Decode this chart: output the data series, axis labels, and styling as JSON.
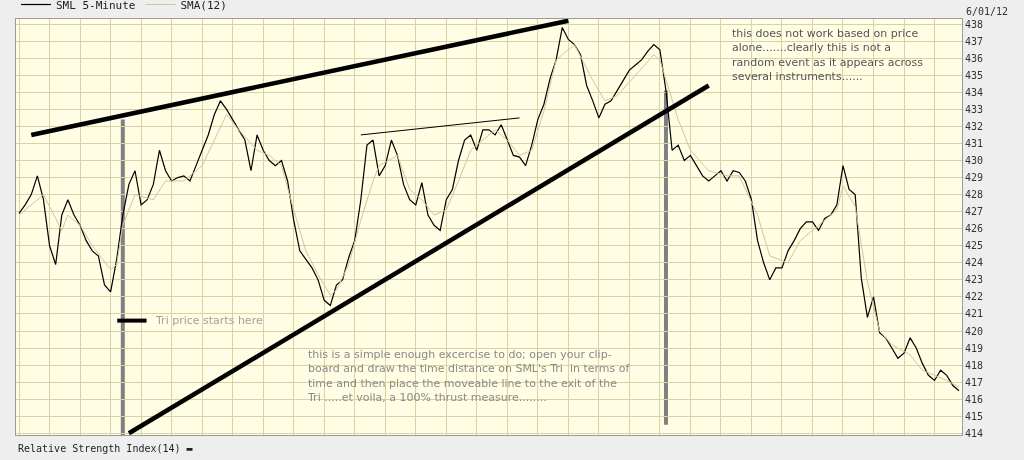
{
  "chart_data": {
    "type": "line",
    "legend": "top left",
    "grid": true,
    "marker": "none",
    "line_style": "solid",
    "ylim": [
      413.9,
      438.3
    ],
    "yticks": [
      414,
      415,
      416,
      417,
      418,
      419,
      420,
      421,
      422,
      423,
      424,
      425,
      426,
      427,
      428,
      429,
      430,
      431,
      432,
      433,
      434,
      435,
      436,
      437,
      438
    ],
    "categories": [
      null,
      null,
      null,
      null,
      null,
      null,
      null,
      null,
      null,
      null,
      null,
      null,
      null,
      null,
      null,
      null,
      null,
      null,
      null,
      null,
      null,
      null,
      null,
      null,
      null,
      null,
      null,
      null,
      null,
      null,
      null,
      null,
      null,
      null,
      null,
      null,
      null,
      null,
      null,
      null,
      null,
      null,
      null,
      null,
      null,
      null,
      null,
      null,
      null,
      null,
      null,
      null,
      null,
      null,
      null,
      null,
      null,
      null,
      null,
      null,
      null,
      null,
      null,
      null,
      null,
      null,
      null,
      null,
      null,
      null,
      null,
      null,
      null,
      null,
      null,
      null,
      null,
      null,
      null,
      null,
      null,
      null,
      null,
      null,
      null,
      null,
      null,
      null,
      null,
      null,
      null,
      null,
      null,
      null,
      null,
      null,
      null,
      null,
      null,
      null,
      null,
      null,
      null,
      null,
      null,
      null,
      null,
      null,
      null,
      null,
      null,
      null,
      null,
      null,
      null,
      null,
      null,
      null,
      null,
      null,
      null,
      null,
      null,
      null,
      null,
      null,
      null,
      null,
      null,
      null,
      null,
      null,
      null,
      null,
      null,
      null,
      null,
      null,
      null,
      null,
      null,
      null,
      null,
      null,
      null,
      null,
      null,
      null,
      null,
      null,
      null,
      null,
      null,
      null,
      null
    ],
    "series": [
      {
        "name": "SML 5-Minute",
        "color": "#000000",
        "values": [
          426.9,
          427.4,
          428.0,
          429.1,
          427.7,
          425.0,
          423.9,
          426.8,
          427.7,
          426.8,
          426.2,
          425.3,
          424.7,
          424.4,
          422.7,
          422.3,
          424.2,
          426.8,
          428.6,
          429.4,
          427.4,
          427.7,
          428.6,
          430.6,
          429.4,
          428.8,
          429.0,
          429.1,
          428.8,
          429.7,
          430.6,
          431.5,
          432.7,
          433.5,
          433.0,
          432.4,
          431.8,
          431.2,
          429.4,
          431.5,
          430.6,
          430.0,
          429.7,
          430.0,
          428.8,
          426.5,
          424.7,
          424.2,
          423.7,
          423.0,
          421.8,
          421.5,
          422.7,
          423.0,
          424.3,
          425.3,
          427.7,
          430.9,
          431.2,
          429.1,
          429.7,
          431.2,
          430.3,
          428.6,
          427.7,
          427.4,
          428.7,
          426.8,
          426.2,
          425.9,
          427.7,
          428.3,
          430.0,
          431.2,
          431.5,
          430.6,
          431.8,
          431.8,
          431.5,
          432.1,
          431.2,
          430.3,
          430.2,
          429.7,
          430.9,
          432.4,
          433.3,
          434.8,
          435.9,
          437.8,
          437.1,
          436.8,
          436.2,
          434.4,
          433.5,
          432.5,
          433.3,
          433.5,
          434.1,
          434.7,
          435.3,
          435.6,
          435.9,
          436.4,
          436.8,
          436.5,
          434.1,
          430.6,
          430.9,
          430.0,
          430.3,
          429.7,
          429.1,
          428.8,
          429.1,
          429.4,
          428.8,
          429.4,
          429.3,
          428.8,
          427.7,
          425.3,
          424.0,
          423.0,
          423.7,
          423.7,
          424.7,
          425.3,
          426.0,
          426.4,
          426.4,
          425.9,
          426.6,
          426.8,
          427.4,
          429.7,
          428.3,
          428.0,
          423.1,
          420.8,
          422.0,
          419.9,
          419.6,
          419.0,
          418.4,
          418.7,
          419.6,
          419.0,
          418.1,
          417.4,
          417.1,
          417.7,
          417.4,
          416.8,
          416.5
        ]
      },
      {
        "name": "SMA(12)",
        "color": "#d4c49a",
        "values": [
          426.8,
          null,
          427.4,
          null,
          428.0,
          null,
          null,
          425.9,
          426.8,
          null,
          426.2,
          null,
          425.0,
          null,
          null,
          423.6,
          423.9,
          426.2,
          null,
          428.0,
          null,
          null,
          427.7,
          null,
          428.8,
          null,
          null,
          428.8,
          null,
          null,
          429.7,
          null,
          431.2,
          null,
          432.7,
          null,
          431.8,
          null,
          null,
          430.6,
          null,
          430.3,
          null,
          429.7,
          null,
          427.1,
          null,
          424.7,
          null,
          423.3,
          null,
          422.1,
          422.4,
          null,
          423.9,
          null,
          426.5,
          null,
          428.8,
          429.7,
          null,
          null,
          430.3,
          null,
          428.3,
          null,
          427.7,
          null,
          426.8,
          null,
          427.1,
          null,
          428.8,
          null,
          430.6,
          null,
          431.2,
          null,
          431.8,
          null,
          431.2,
          null,
          430.3,
          null,
          430.6,
          null,
          432.9,
          null,
          435.9,
          null,
          null,
          436.8,
          null,
          null,
          434.7,
          null,
          433.5,
          null,
          433.8,
          null,
          null,
          435.0,
          null,
          null,
          436.2,
          435.9,
          null,
          null,
          432.4,
          null,
          430.6,
          null,
          null,
          429.4,
          null,
          null,
          429.1,
          null,
          429.1,
          null,
          null,
          426.8,
          null,
          424.4,
          null,
          null,
          424.0,
          null,
          425.3,
          null,
          null,
          426.2,
          null,
          null,
          427.1,
          428.5,
          null,
          427.3,
          null,
          422.9,
          null,
          420.0,
          null,
          419.2,
          null,
          null,
          418.6,
          null,
          417.7,
          null,
          null,
          null,
          417.1,
          null,
          416.7
        ]
      },
      {
        "color": "#000000",
        "values": [
          null,
          null,
          431.5,
          null,
          null,
          null,
          null,
          null,
          null,
          null,
          null,
          null,
          null,
          null,
          null,
          null,
          null,
          null,
          null,
          null,
          null,
          null,
          null,
          null,
          null,
          null,
          null,
          null,
          null,
          null,
          null,
          null,
          null,
          null,
          null,
          null,
          null,
          null,
          null,
          null,
          null,
          null,
          null,
          null,
          null,
          null,
          null,
          null,
          null,
          null,
          null,
          null,
          null,
          null,
          null,
          null,
          null,
          null,
          null,
          null,
          null,
          null,
          null,
          null,
          null,
          null,
          null,
          null,
          null,
          null,
          null,
          null,
          null,
          null,
          null,
          null,
          null,
          null,
          null,
          null,
          null,
          null,
          null,
          null,
          null,
          null,
          null,
          null,
          null,
          null,
          438.2,
          null,
          null,
          null,
          null,
          null,
          null,
          null,
          null,
          null,
          null,
          null,
          null,
          null,
          null,
          null,
          null,
          null,
          null,
          null,
          null,
          null,
          null,
          null,
          null,
          null,
          null,
          null,
          null,
          null,
          null,
          null,
          null,
          null,
          null,
          null,
          null,
          null,
          null,
          null,
          null,
          null,
          null,
          null,
          null,
          null,
          null,
          null,
          null,
          null,
          null,
          null,
          null,
          null,
          null,
          null,
          null,
          null,
          null,
          null,
          null,
          null,
          null,
          null,
          null
        ]
      },
      {
        "color": "#000000",
        "values": [
          null,
          null,
          null,
          null,
          null,
          null,
          null,
          null,
          null,
          null,
          null,
          null,
          null,
          null,
          null,
          null,
          null,
          null,
          414.0,
          null,
          null,
          null,
          null,
          null,
          null,
          null,
          null,
          null,
          null,
          null,
          null,
          null,
          null,
          null,
          null,
          null,
          null,
          null,
          null,
          null,
          null,
          null,
          null,
          null,
          null,
          null,
          null,
          null,
          null,
          null,
          null,
          null,
          null,
          null,
          null,
          null,
          null,
          null,
          null,
          null,
          null,
          null,
          null,
          null,
          null,
          null,
          null,
          null,
          null,
          null,
          null,
          null,
          null,
          null,
          null,
          null,
          null,
          null,
          null,
          null,
          null,
          null,
          null,
          null,
          null,
          null,
          null,
          null,
          null,
          null,
          null,
          null,
          null,
          null,
          null,
          null,
          null,
          null,
          null,
          null,
          null,
          null,
          null,
          null,
          null,
          null,
          null,
          null,
          null,
          null,
          null,
          null,
          null,
          434.4,
          null,
          null,
          null,
          null,
          null,
          null,
          null,
          null,
          null,
          null,
          null,
          null,
          null,
          null,
          null,
          null,
          null,
          null,
          null,
          null,
          null,
          null,
          null,
          null,
          null,
          null,
          null,
          null,
          null,
          null,
          null,
          null,
          null,
          null,
          null,
          null,
          null,
          null,
          null,
          null,
          null
        ]
      },
      {
        "color": "#000000",
        "values": [
          null,
          null,
          null,
          null,
          null,
          null,
          null,
          null,
          null,
          null,
          null,
          null,
          null,
          null,
          null,
          null,
          null,
          null,
          null,
          null,
          null,
          null,
          null,
          null,
          null,
          null,
          null,
          null,
          null,
          null,
          null,
          null,
          null,
          null,
          null,
          null,
          null,
          null,
          null,
          null,
          null,
          null,
          null,
          null,
          null,
          null,
          null,
          null,
          null,
          null,
          null,
          null,
          null,
          null,
          null,
          null,
          431.5,
          null,
          null,
          null,
          null,
          null,
          null,
          null,
          null,
          null,
          null,
          null,
          null,
          null,
          null,
          null,
          null,
          null,
          null,
          null,
          null,
          null,
          null,
          null,
          null,
          null,
          432.5,
          null,
          null,
          null,
          null,
          null,
          null,
          null,
          null,
          null,
          null,
          null,
          null,
          null,
          null,
          null,
          null,
          null,
          null,
          null,
          null,
          null,
          null,
          null,
          null,
          null,
          null,
          null,
          null,
          null,
          null,
          null,
          null,
          null,
          null,
          null,
          null,
          null,
          null,
          null,
          null,
          null,
          null,
          null,
          null,
          null,
          null,
          null,
          null,
          null,
          null,
          null,
          null,
          null,
          null,
          null,
          null,
          null,
          null,
          null,
          null,
          null,
          null,
          null,
          null,
          null,
          null,
          null,
          null,
          null,
          null,
          null,
          null
        ]
      }
    ],
    "annotations": [
      "6/01/12",
      "this does not work based on price\nalone.......clearly this is not a\nrandom event as it appears across\nseveral instruments......",
      "Tri price starts here",
      "this is a simple enough excercise to do; open your clip-\nboard and draw the time distance on SML's Tri  in terms of\ntime and then place the moveable line to the exit of the\nTri .....et voila, a 100% thrust measure........",
      "Relative Strength Index(14) ▬"
    ]
  }
}
